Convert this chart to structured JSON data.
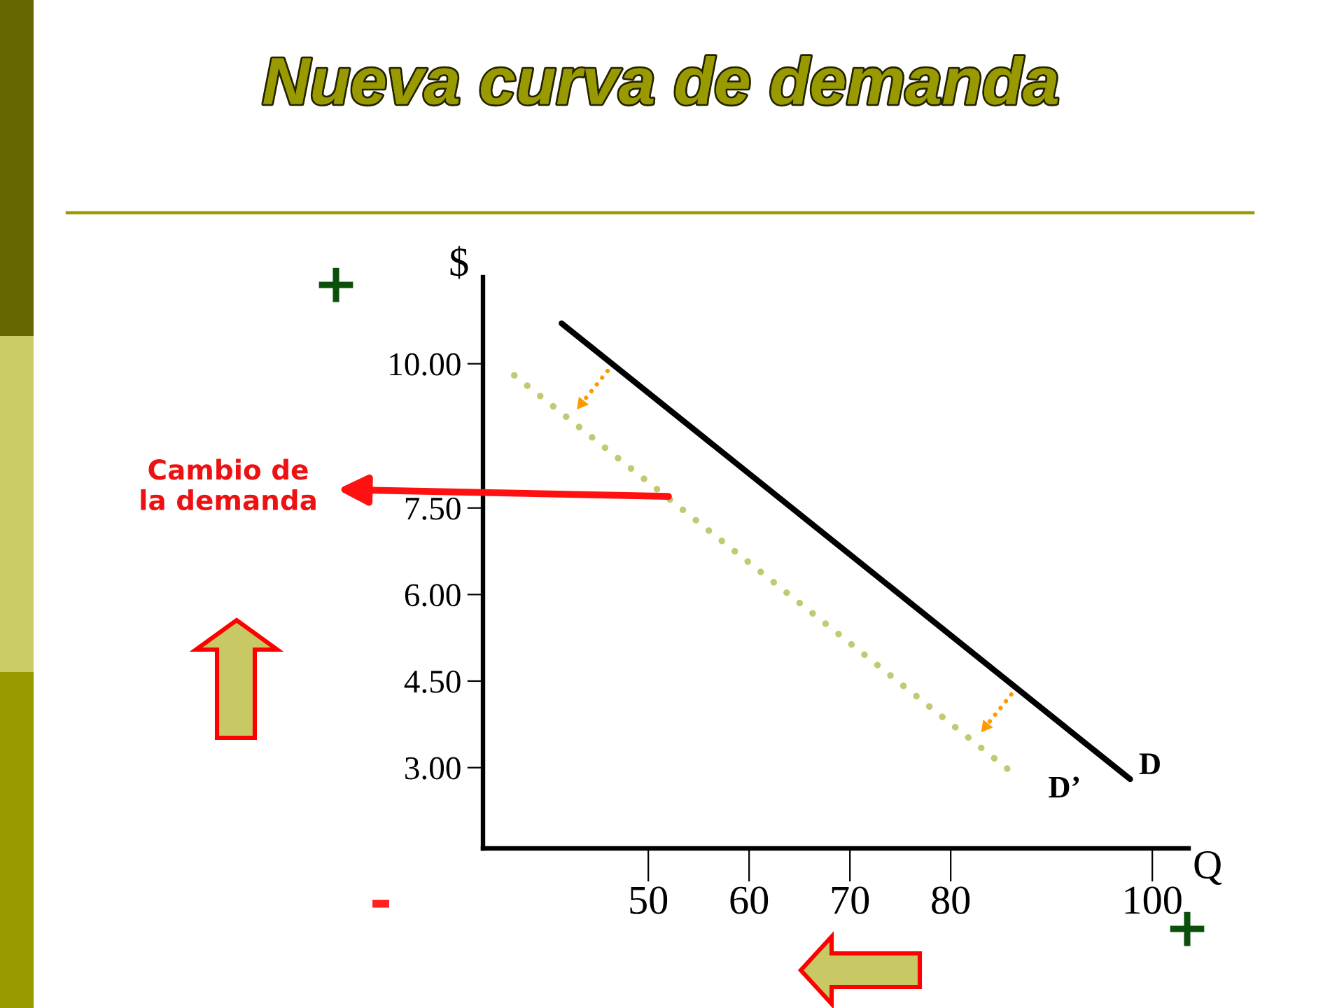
{
  "chart_data": {
    "type": "line",
    "title": "Nueva curva de demanda",
    "xlabel": "Q",
    "ylabel": "$",
    "series": [
      {
        "name": "D",
        "color": "#000000",
        "line_style": "solid",
        "x": [
          41.4,
          97.8
        ],
        "values": [
          10.7,
          2.8
        ]
      },
      {
        "name": "D’",
        "color": "#c3c973",
        "line_style": "dotted",
        "x": [
          36.7,
          86.2
        ],
        "values": [
          9.8,
          2.9
        ]
      }
    ],
    "xlim": [
      33.6,
      103.6
    ],
    "ylim": [
      1.6,
      11.5
    ],
    "xticks": [
      50,
      60,
      70,
      80,
      100
    ],
    "yticks": [
      {
        "value": 3,
        "label": "3.00"
      },
      {
        "value": 4.5,
        "label": "4.50"
      },
      {
        "value": 6,
        "label": "6.00"
      },
      {
        "value": 7.5,
        "label": "7.50"
      },
      {
        "value": 10,
        "label": "10.00"
      }
    ],
    "annotations": [
      {
        "text": "Cambio de\nla demanda",
        "x": 52,
        "y": 7.7
      },
      "+",
      "-",
      "+"
    ],
    "grid": false,
    "legend": false
  }
}
